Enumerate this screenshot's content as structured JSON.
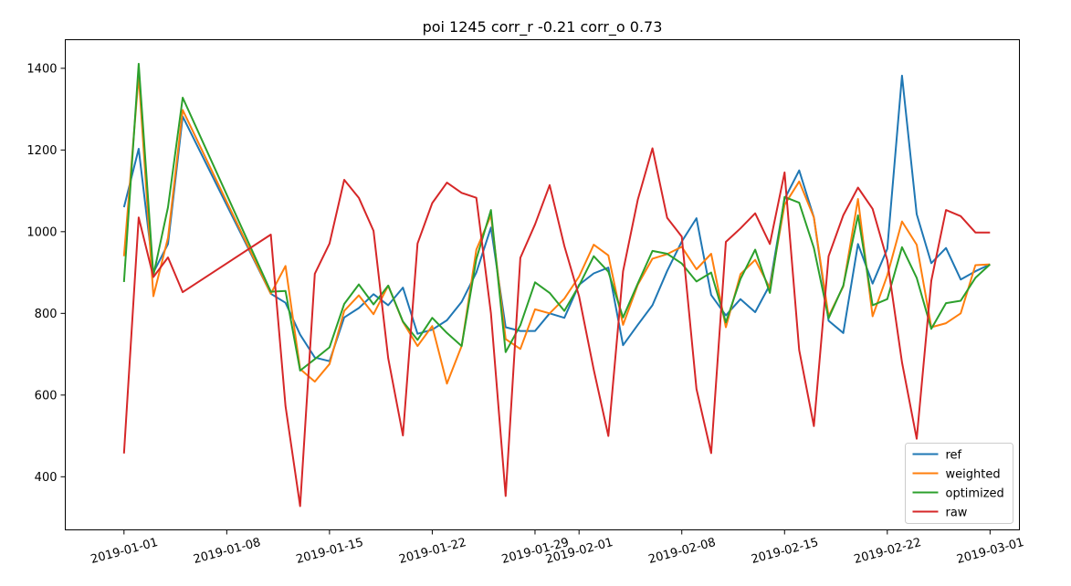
{
  "chart_data": {
    "type": "line",
    "title": "poi 1245 corr_r -0.21 corr_o 0.73",
    "xlabel": "",
    "ylabel": "",
    "x_axis": "date",
    "xlim": [
      "2018-12-28",
      "2019-03-03"
    ],
    "ylim": [
      270,
      1470
    ],
    "x_ticks": [
      "2019-01-01",
      "2019-01-08",
      "2019-01-15",
      "2019-01-22",
      "2019-01-29",
      "2019-02-01",
      "2019-02-08",
      "2019-02-15",
      "2019-02-22",
      "2019-03-01"
    ],
    "y_ticks": [
      400,
      600,
      800,
      1000,
      1200,
      1400
    ],
    "x_tick_rotation_deg": 15,
    "grid": false,
    "legend_position": "lower right",
    "x": [
      "2019-01-01",
      "2019-01-02",
      "2019-01-03",
      "2019-01-04",
      "2019-01-05",
      "2019-01-11",
      "2019-01-12",
      "2019-01-13",
      "2019-01-14",
      "2019-01-15",
      "2019-01-16",
      "2019-01-17",
      "2019-01-18",
      "2019-01-19",
      "2019-01-20",
      "2019-01-21",
      "2019-01-22",
      "2019-01-23",
      "2019-01-24",
      "2019-01-25",
      "2019-01-26",
      "2019-01-27",
      "2019-01-28",
      "2019-01-29",
      "2019-01-30",
      "2019-01-31",
      "2019-02-01",
      "2019-02-02",
      "2019-02-03",
      "2019-02-04",
      "2019-02-05",
      "2019-02-06",
      "2019-02-07",
      "2019-02-08",
      "2019-02-09",
      "2019-02-10",
      "2019-02-11",
      "2019-02-12",
      "2019-02-13",
      "2019-02-14",
      "2019-02-15",
      "2019-02-16",
      "2019-02-17",
      "2019-02-18",
      "2019-02-19",
      "2019-02-20",
      "2019-02-21",
      "2019-02-22",
      "2019-02-23",
      "2019-02-24",
      "2019-02-25",
      "2019-02-26",
      "2019-02-27",
      "2019-02-28",
      "2019-03-01"
    ],
    "series": [
      {
        "name": "ref",
        "color": "#1f77b4",
        "values": [
          1060,
          1203,
          900,
          970,
          1282,
          848,
          826,
          748,
          692,
          683,
          790,
          813,
          847,
          820,
          863,
          750,
          760,
          783,
          828,
          900,
          1010,
          766,
          757,
          757,
          800,
          789,
          870,
          898,
          912,
          722,
          772,
          820,
          904,
          976,
          1033,
          845,
          795,
          835,
          803,
          870,
          1080,
          1150,
          1035,
          782,
          752,
          970,
          873,
          958,
          1382,
          1043,
          923,
          960,
          883,
          903,
          920
        ]
      },
      {
        "name": "weighted",
        "color": "#ff7f0e",
        "values": [
          940,
          1383,
          842,
          985,
          1298,
          848,
          916,
          664,
          633,
          676,
          806,
          844,
          798,
          868,
          779,
          720,
          769,
          628,
          720,
          956,
          1040,
          737,
          713,
          810,
          800,
          836,
          890,
          968,
          942,
          772,
          870,
          934,
          945,
          963,
          908,
          946,
          766,
          896,
          931,
          862,
          1066,
          1123,
          1035,
          793,
          866,
          1080,
          793,
          893,
          1025,
          968,
          766,
          776,
          800,
          918,
          920
        ]
      },
      {
        "name": "optimized",
        "color": "#2ca02c",
        "values": [
          877,
          1411,
          893,
          1060,
          1328,
          853,
          855,
          660,
          688,
          717,
          823,
          871,
          822,
          868,
          780,
          735,
          789,
          752,
          720,
          933,
          1053,
          705,
          771,
          876,
          850,
          806,
          868,
          940,
          902,
          790,
          873,
          953,
          946,
          922,
          878,
          900,
          778,
          884,
          956,
          850,
          1085,
          1071,
          960,
          788,
          868,
          1040,
          820,
          835,
          962,
          887,
          762,
          825,
          831,
          887,
          920
        ]
      },
      {
        "name": "raw",
        "color": "#d62728",
        "values": [
          457,
          1035,
          889,
          937,
          852,
          993,
          573,
          328,
          897,
          971,
          1127,
          1083,
          1002,
          690,
          501,
          971,
          1070,
          1120,
          1095,
          1083,
          800,
          353,
          936,
          1018,
          1114,
          965,
          842,
          662,
          500,
          903,
          1078,
          1204,
          1034,
          988,
          615,
          458,
          975,
          1008,
          1045,
          970,
          1145,
          710,
          524,
          940,
          1040,
          1108,
          1056,
          930,
          680,
          493,
          880,
          1053,
          1038,
          998,
          998
        ]
      }
    ]
  }
}
